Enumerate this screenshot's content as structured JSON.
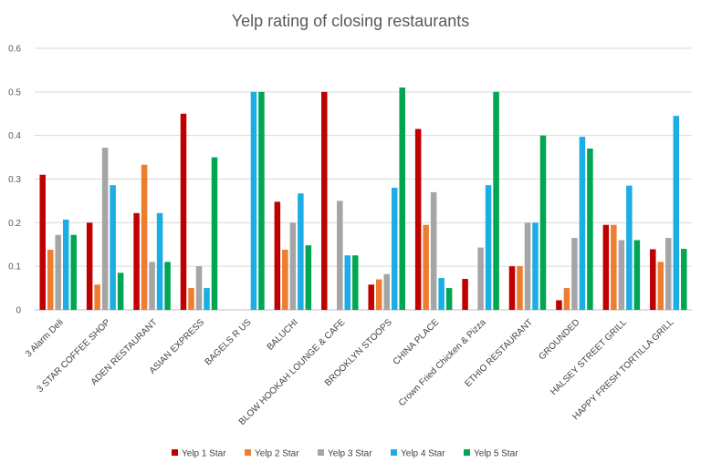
{
  "chart_data": {
    "type": "bar",
    "title": "Yelp rating of closing restaurants",
    "xlabel": "",
    "ylabel": "",
    "ylim": [
      0,
      0.6
    ],
    "yticks": [
      "0",
      "0.1",
      "0.2",
      "0.3",
      "0.4",
      "0.5",
      "0.6"
    ],
    "grid": true,
    "legend_position": "bottom",
    "categories": [
      "3 Alarm Deli",
      "3 STAR COFFEE SHOP",
      "ADEN RESTAURANT",
      "ASIAN EXPRESS",
      "BAGELS R US",
      "BALUCHI",
      "BLOW HOOKAH LOUNGE & CAFE",
      "BROOKLYN STOOPS",
      "CHINA PLACE",
      "Crown Fried Chicken & Pizza",
      "ETHIO RESTAURANT",
      "GROUNDED",
      "HALSEY STREET GRILL",
      "HAPPY FRESH TORTILLA GRILL"
    ],
    "series": [
      {
        "name": "Yelp 1 Star",
        "color": "#C00000",
        "values": [
          0.31,
          0.2,
          0.222,
          0.45,
          0,
          0.248,
          0.5,
          0.058,
          0.415,
          0.071,
          0.1,
          0.022,
          0.195,
          0.139
        ]
      },
      {
        "name": "Yelp 2 Star",
        "color": "#ED7D31",
        "values": [
          0.138,
          0.058,
          0.333,
          0.05,
          0,
          0.138,
          0,
          0.07,
          0.195,
          0,
          0.1,
          0.05,
          0.195,
          0.11
        ]
      },
      {
        "name": "Yelp 3 Star",
        "color": "#A5A5A5",
        "values": [
          0.172,
          0.372,
          0.11,
          0.1,
          0,
          0.2,
          0.25,
          0.082,
          0.27,
          0.143,
          0.2,
          0.165,
          0.16,
          0.165
        ]
      },
      {
        "name": "Yelp 4 Star",
        "color": "#1CADE4",
        "values": [
          0.207,
          0.286,
          0.222,
          0.05,
          0.5,
          0.267,
          0.125,
          0.28,
          0.073,
          0.286,
          0.2,
          0.397,
          0.285,
          0.445
        ]
      },
      {
        "name": "Yelp 5 Star",
        "color": "#00A651",
        "values": [
          0.172,
          0.085,
          0.11,
          0.35,
          0.5,
          0.148,
          0.125,
          0.51,
          0.05,
          0.5,
          0.4,
          0.37,
          0.16,
          0.14
        ]
      }
    ]
  }
}
